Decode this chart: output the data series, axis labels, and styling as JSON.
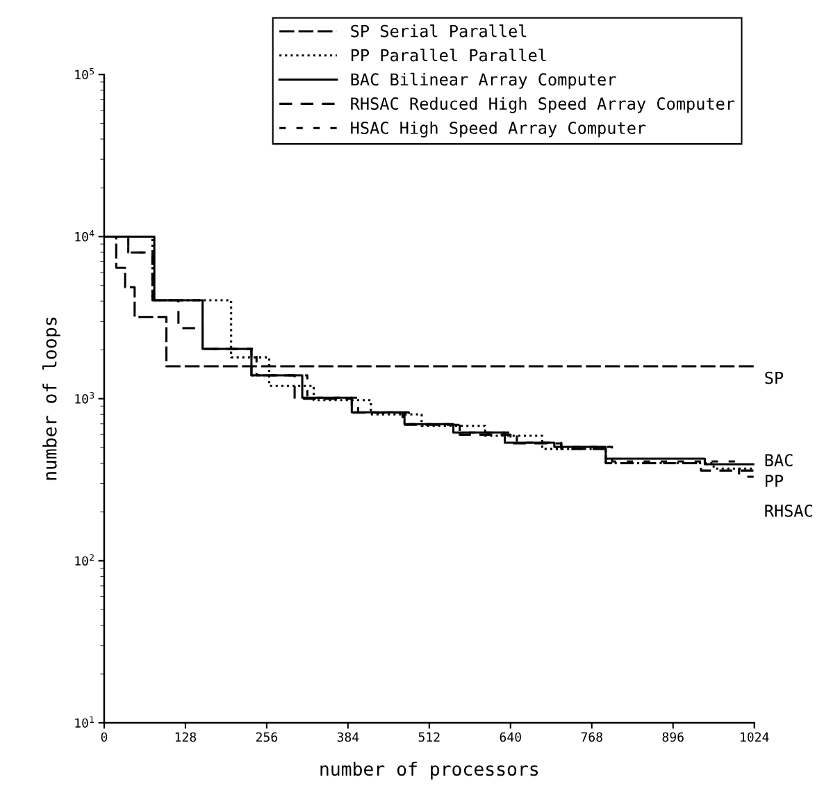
{
  "chart_data": {
    "type": "step",
    "xlabel": "number of processors",
    "ylabel": "number of loops",
    "log": "y",
    "xlim": [
      0,
      1024
    ],
    "xticks": [
      0,
      128,
      256,
      384,
      512,
      640,
      768,
      896,
      1024
    ],
    "ylim": [
      10,
      100000
    ],
    "yticks": [
      {
        "value": 10,
        "label": "10$^{1}$"
      },
      {
        "value": 100,
        "label": "10$^{2}$"
      },
      {
        "value": 1000,
        "label": "10$^{3}$"
      },
      {
        "value": 10000,
        "label": "10$^{4}$"
      },
      {
        "value": 100000,
        "label": "10$^{5}$"
      }
    ],
    "grid": false,
    "legend": "top",
    "series": [
      {
        "name": "SP Serial Parallel",
        "line_style": "dashed",
        "color": "#000000",
        "x": [
          0,
          19,
          33,
          48,
          98,
          1024
        ],
        "values": [
          10000,
          6430,
          4870,
          3190,
          1585,
          1585
        ]
      },
      {
        "name": "PP Parallel Parallel",
        "line_style": "dotted",
        "color": "#000000",
        "x": [
          0,
          76,
          200,
          260,
          330,
          420,
          500,
          600,
          690,
          790,
          960,
          1024
        ],
        "values": [
          10000,
          4050,
          1800,
          1200,
          980,
          800,
          680,
          590,
          490,
          400,
          370,
          370
        ]
      },
      {
        "name": "BAC Bilinear Array Computer",
        "line_style": "solid",
        "color": "#000000",
        "x": [
          0,
          79,
          155,
          232,
          312,
          390,
          473,
          550,
          631,
          709,
          790,
          946,
          1024
        ],
        "values": [
          10000,
          4050,
          2030,
          1393,
          1014,
          824,
          697,
          619,
          535,
          504,
          426,
          394,
          394
        ]
      },
      {
        "name": "RHSAC Reduced High Speed Array Computer",
        "line_style": "dashed",
        "color": "#000000",
        "x": [
          0,
          38,
          76,
          117,
          155,
          232,
          300,
          390,
          470,
          560,
          640,
          720,
          790,
          940,
          1024
        ],
        "values": [
          10000,
          7980,
          4050,
          2720,
          2030,
          1393,
          1000,
          820,
          690,
          600,
          530,
          490,
          400,
          360,
          360
        ]
      },
      {
        "name": "HSAC High Speed Array Computer",
        "line_style": "dashed",
        "color": "#000000",
        "x": [
          0,
          38,
          76,
          155,
          240,
          320,
          400,
          480,
          560,
          650,
          720,
          800,
          1000,
          1024
        ],
        "values": [
          10000,
          7980,
          4050,
          2030,
          1393,
          1014,
          824,
          697,
          619,
          535,
          504,
          410,
          330,
          330
        ]
      }
    ],
    "annotations": [
      "SP",
      "BAC",
      "PP",
      "RHSAC"
    ]
  }
}
